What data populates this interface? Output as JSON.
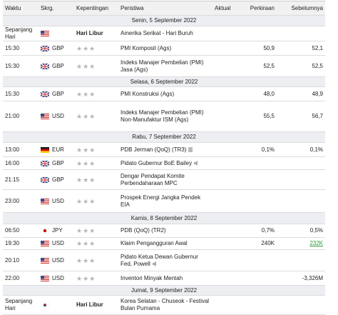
{
  "header": {
    "columns": [
      "Waktu",
      "Skrg.",
      "Kepentingan",
      "Peristiwa",
      "Aktual",
      "Perkiraan",
      "Sebelumnya"
    ]
  },
  "sections": [
    {
      "date": "Senin, 5 September 2022",
      "rows": [
        {
          "time": "Sepanjang Hari",
          "importance": "Hari Libur",
          "event": "Amerika Serikat - Hari Buruh"
        },
        {
          "time": "15:30",
          "currency": "GBP",
          "event": "PMI Komposit (Ags)",
          "forecast": "50,9",
          "previous": "52,1"
        },
        {
          "time": "15:30",
          "currency": "GBP",
          "event": "Indeks Manajer Pembelian (PMI) Jasa (Ags)",
          "forecast": "52,5",
          "previous": "52,5"
        }
      ]
    },
    {
      "date": "Selasa, 6 September 2022",
      "rows": [
        {
          "time": "15:30",
          "currency": "GBP",
          "event": "PMI Konstruksi (Ags)",
          "forecast": "48,0",
          "previous": "48,9"
        },
        {
          "time": "21:00",
          "currency": "USD",
          "event": "Indeks Manajer Pembelian (PMI) Non-Manufaktur ISM (Ags)",
          "forecast": "55,5",
          "previous": "56,7"
        }
      ]
    },
    {
      "date": "Rabu, 7 September 2022",
      "rows": [
        {
          "time": "13:00",
          "currency": "EUR",
          "event": "PDB Jerman (QoQ) (TR3)",
          "forecast": "0,1%",
          "previous": "0,1%"
        },
        {
          "time": "16:00",
          "currency": "GBP",
          "event": "Pidato Gubernur BoE Bailey"
        },
        {
          "time": "21:15",
          "currency": "GBP",
          "event": "Dengar Pendapat Komite Perbendaharaan MPC"
        },
        {
          "time": "23:00",
          "currency": "USD",
          "event": "Prospek Energi Jangka Pendek EIA"
        }
      ]
    },
    {
      "date": "Kamis, 8 September 2022",
      "rows": [
        {
          "time": "06:50",
          "currency": "JPY",
          "event": "PDB (QoQ) (TR2)",
          "forecast": "0,7%",
          "previous": "0,5%"
        },
        {
          "time": "19:30",
          "currency": "USD",
          "event": "Klaim Pengangguran Awal",
          "forecast": "240K",
          "previous": "232K"
        },
        {
          "time": "20:10",
          "currency": "USD",
          "event": "Pidato Ketua Dewan Gubernur Fed, Powell"
        },
        {
          "time": "22:00",
          "currency": "USD",
          "event": "Inventori Minyak Mentah",
          "previous": "-3,326M"
        }
      ]
    },
    {
      "date": "Jumat, 9 September 2022",
      "rows": [
        {
          "time": "Sepanjang Hari",
          "importance": "Hari Libur",
          "event": "Korea Selatan - Chuseok - Festival Bulan Purnama"
        }
      ]
    }
  ]
}
